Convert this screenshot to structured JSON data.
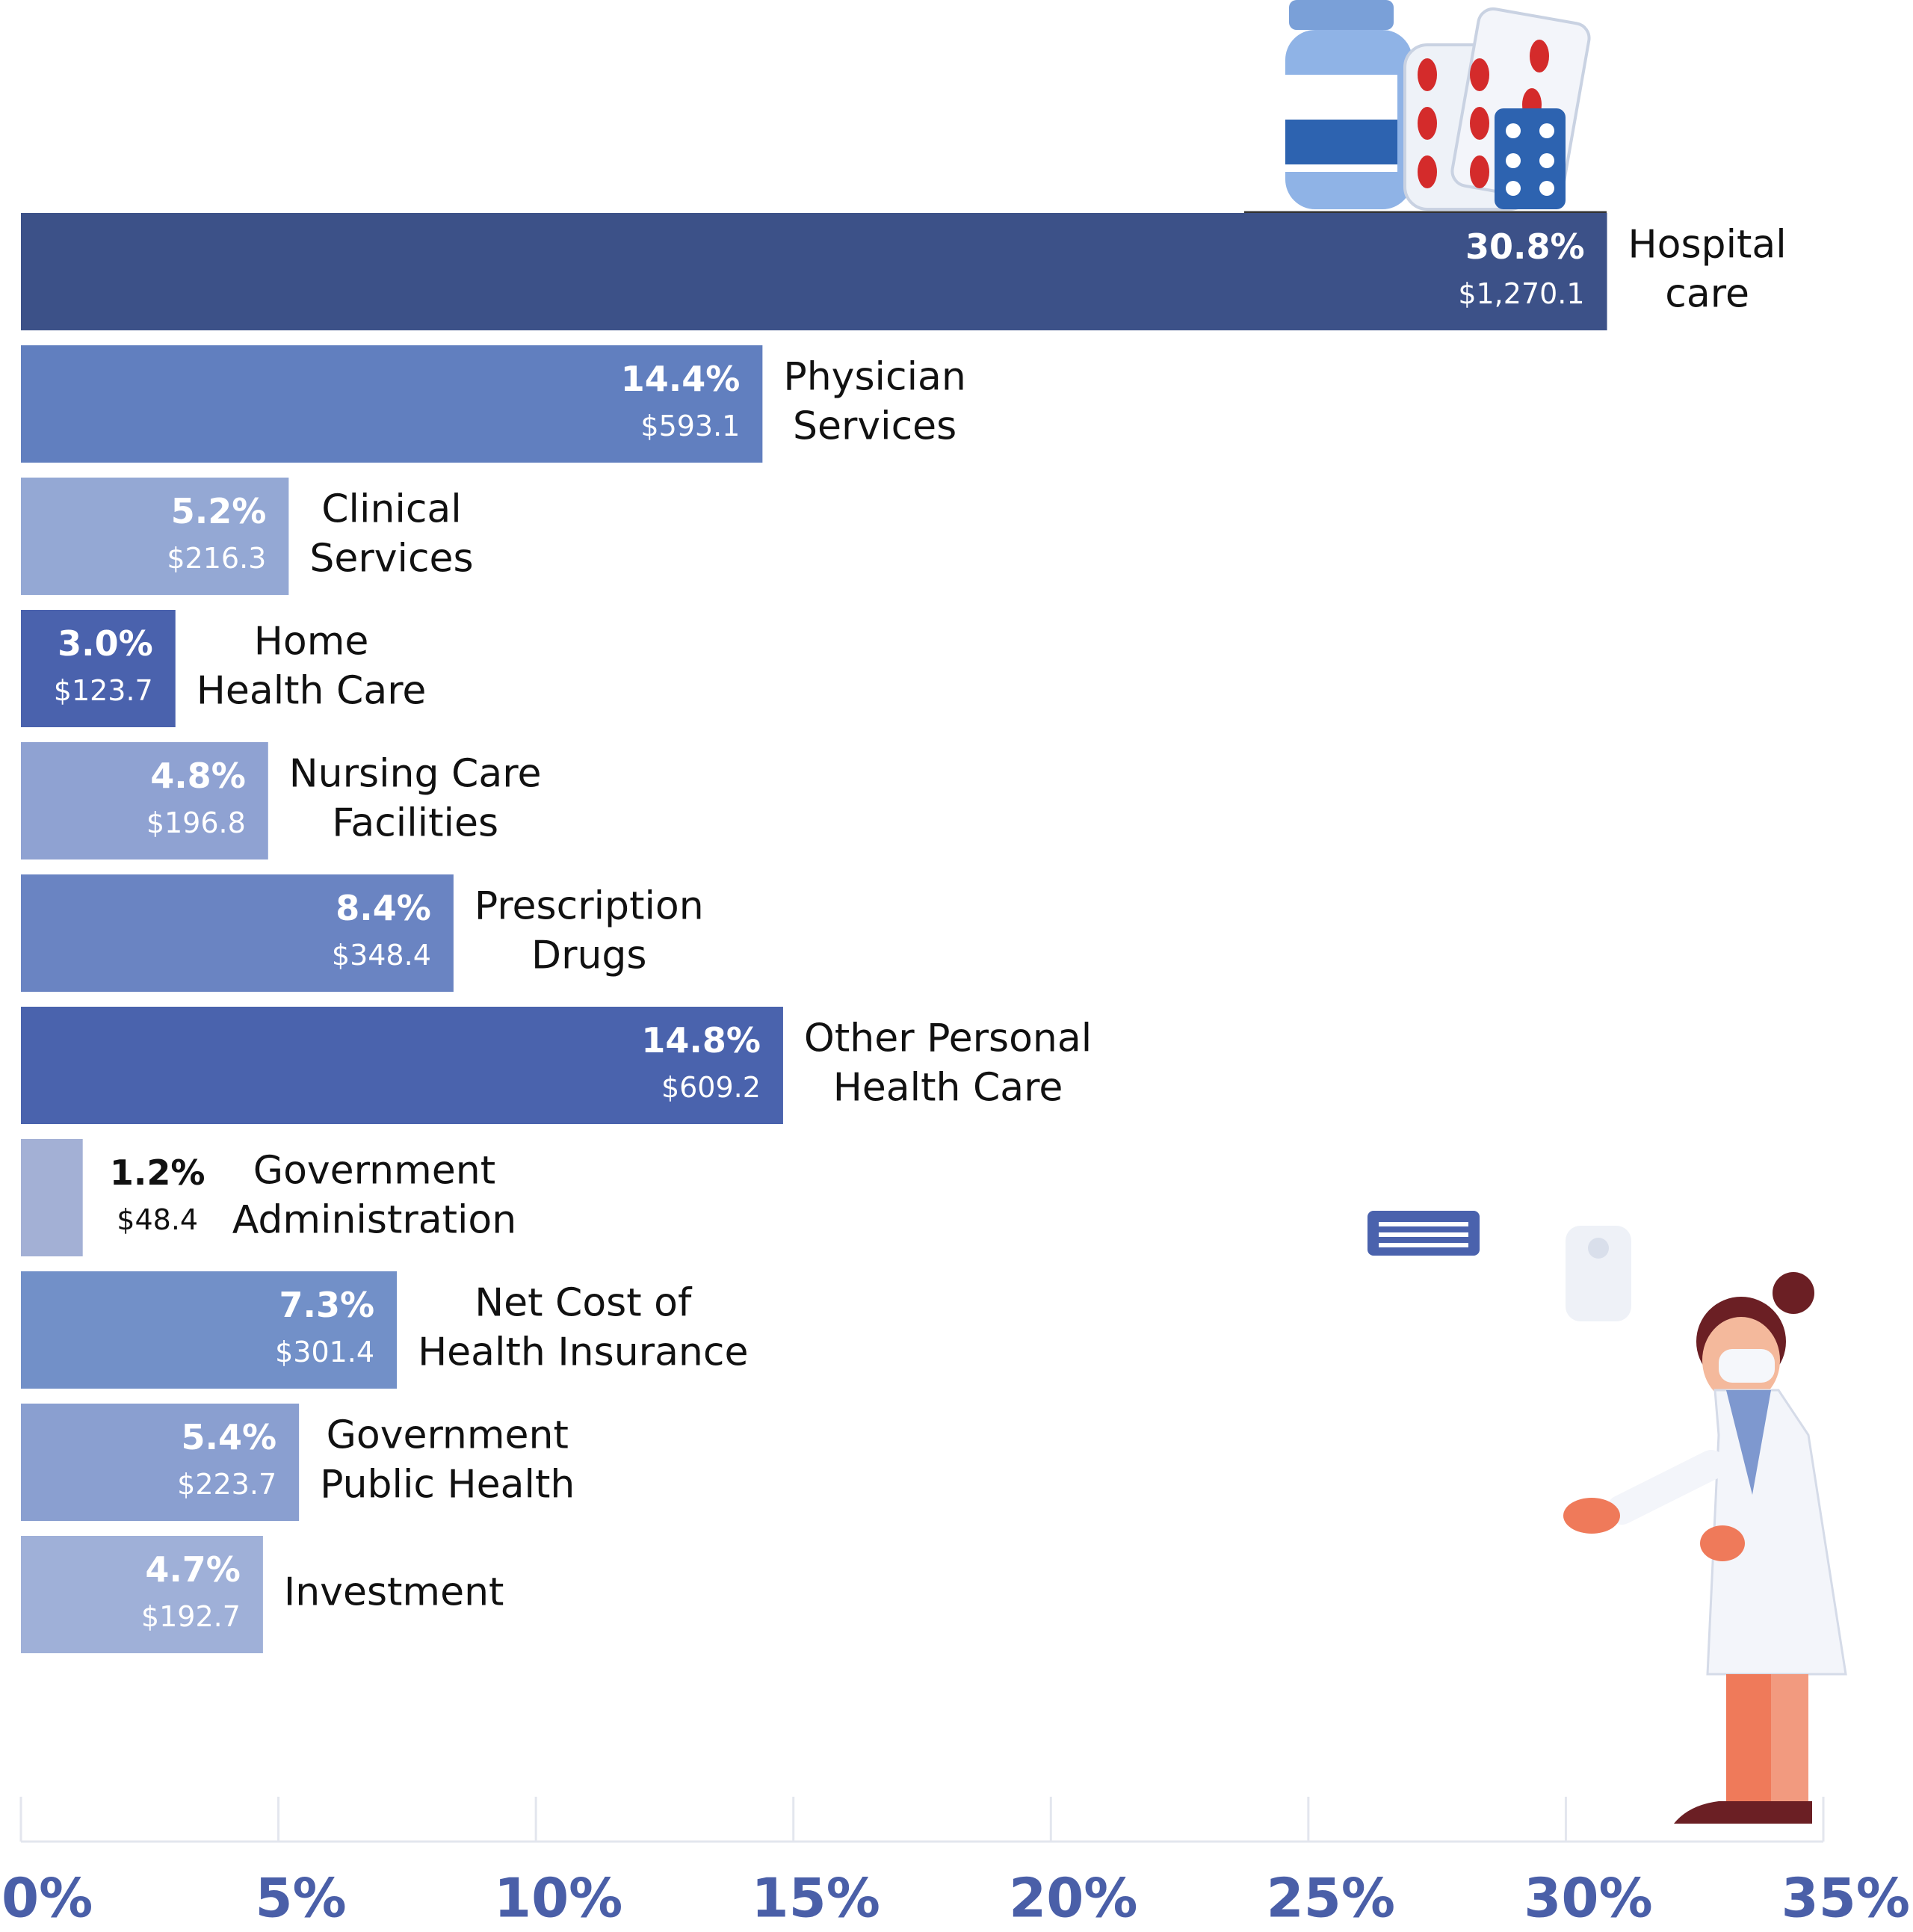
{
  "chart_data": {
    "type": "hbar",
    "categories": [
      "Hospital\ncare",
      "Physician\nServices",
      "Clinical\nServices",
      "Home\nHealth Care",
      "Nursing Care\nFacilities",
      "Prescription\nDrugs",
      "Other Personal\nHealth Care",
      "Government\nAdministration",
      "Net Cost of\nHealth Insurance",
      "Government\nPublic Health",
      "Investment"
    ],
    "values": [
      30.8,
      14.4,
      5.2,
      3.0,
      4.8,
      8.4,
      14.8,
      1.2,
      7.3,
      5.4,
      4.7
    ],
    "value_labels": [
      "30.8%",
      "14.4%",
      "5.2%",
      "3.0%",
      "4.8%",
      "8.4%",
      "14.8%",
      "1.2%",
      "7.3%",
      "5.4%",
      "4.7%"
    ],
    "amounts": [
      1270.1,
      593.1,
      216.3,
      123.7,
      196.8,
      348.4,
      609.2,
      48.4,
      301.4,
      223.7,
      192.7
    ],
    "amount_labels": [
      "$1,270.1",
      "$593.1",
      "$216.3",
      "$123.7",
      "$196.8",
      "$348.4",
      "$609.2",
      "$48.4",
      "$301.4",
      "$223.7",
      "$192.7"
    ],
    "colors": [
      "#3c5188",
      "#617fbf",
      "#94a8d4",
      "#4a62ad",
      "#8fa2d2",
      "#6a84c2",
      "#4a63ad",
      "#a3b0d5",
      "#7290c8",
      "#8a9fd0",
      "#9fb0d8"
    ],
    "xlim": [
      0,
      35
    ],
    "xticks": [
      {
        "value": 0,
        "label": "0%"
      },
      {
        "value": 5,
        "label": "5%"
      },
      {
        "value": 10,
        "label": "10%"
      },
      {
        "value": 15,
        "label": "15%"
      },
      {
        "value": 20,
        "label": "20%"
      },
      {
        "value": 25,
        "label": "25%"
      },
      {
        "value": 30,
        "label": "30%"
      },
      {
        "value": 35,
        "label": "35%"
      }
    ]
  }
}
